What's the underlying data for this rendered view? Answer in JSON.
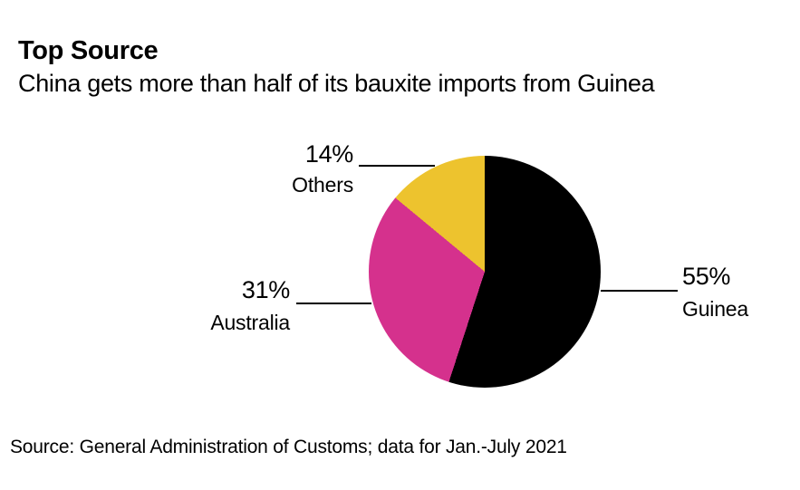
{
  "header": {
    "title": "Top Source",
    "subtitle": "China gets more than half of its bauxite imports from Guinea"
  },
  "footer": {
    "source": "Source: General Administration of Customs; data for Jan.-July 2021"
  },
  "chart_data": {
    "type": "pie",
    "title": "Top Source",
    "subtitle": "China gets more than half of its bauxite imports from Guinea",
    "unit": "%",
    "start_angle_deg": 0,
    "direction": "clockwise",
    "slices": [
      {
        "label": "Guinea",
        "value": 55,
        "pct_label": "55%",
        "color": "#000000",
        "label_position": "right"
      },
      {
        "label": "Australia",
        "value": 31,
        "pct_label": "31%",
        "color": "#d5318d",
        "label_position": "left"
      },
      {
        "label": "Others",
        "value": 14,
        "pct_label": "14%",
        "color": "#edc32e",
        "label_position": "top-left"
      }
    ],
    "legend": "none",
    "labels_style": "leader-lines"
  }
}
